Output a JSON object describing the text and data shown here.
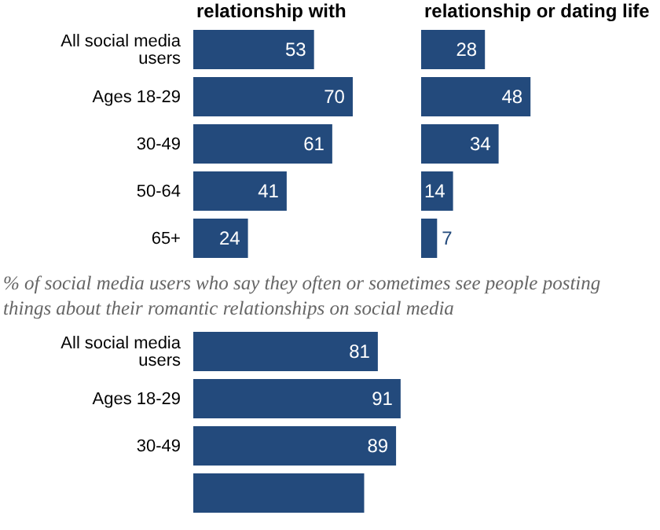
{
  "chart_data": [
    {
      "type": "bar",
      "orientation": "horizontal",
      "title": "relationship with",
      "categories": [
        "All social media users",
        "Ages 18-29",
        "30-49",
        "50-64",
        "65+"
      ],
      "values": [
        53,
        70,
        61,
        41,
        24
      ],
      "color": "#234a7c",
      "data_labels": true,
      "tick_labels": "y"
    },
    {
      "type": "bar",
      "orientation": "horizontal",
      "title": "relationship or dating life",
      "categories": [
        null,
        null,
        null,
        null,
        null
      ],
      "values": [
        28,
        48,
        34,
        14,
        7
      ],
      "color": "#234a7c",
      "data_labels": true,
      "tick_labels": false
    },
    {
      "type": "bar",
      "orientation": "horizontal",
      "subtitle": "% of social media users who say they often or sometimes see people posting things about their romantic relationships on social media",
      "categories": [
        "All social media users",
        "Ages 18-29",
        "30-49",
        null
      ],
      "values": [
        81,
        91,
        89,
        75
      ],
      "value_labels": [
        "81",
        "91",
        "89",
        null
      ],
      "color": "#234a7c",
      "tick_labels": "y"
    }
  ]
}
